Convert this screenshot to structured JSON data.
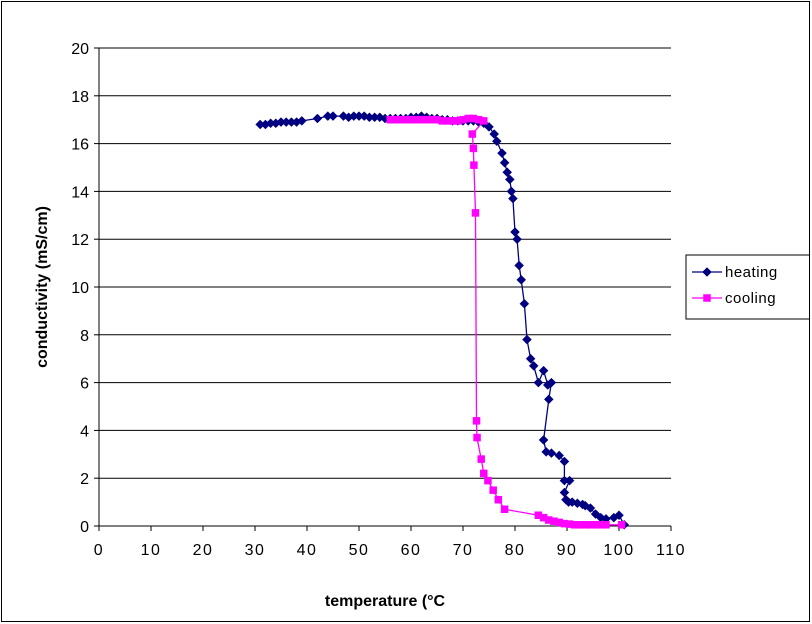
{
  "chart_data": {
    "type": "line",
    "title": "",
    "xlabel": "temperature (°C",
    "ylabel": "conductivity (mS/cm)",
    "xlim": [
      0,
      110
    ],
    "ylim": [
      0,
      20
    ],
    "x_ticks": [
      0,
      10,
      20,
      30,
      40,
      50,
      60,
      70,
      80,
      90,
      100,
      110
    ],
    "y_ticks": [
      0,
      2,
      4,
      6,
      8,
      10,
      12,
      14,
      16,
      18,
      20
    ],
    "grid": "horizontal",
    "legend_position": "right",
    "series": [
      {
        "name": "heating",
        "color": "#000080",
        "marker": "diamond",
        "points": [
          [
            31,
            16.8
          ],
          [
            32,
            16.8
          ],
          [
            33,
            16.85
          ],
          [
            34,
            16.85
          ],
          [
            35,
            16.9
          ],
          [
            36,
            16.9
          ],
          [
            37,
            16.9
          ],
          [
            38,
            16.9
          ],
          [
            39,
            16.95
          ],
          [
            42,
            17.05
          ],
          [
            44,
            17.15
          ],
          [
            45,
            17.15
          ],
          [
            47,
            17.15
          ],
          [
            48,
            17.1
          ],
          [
            49,
            17.15
          ],
          [
            50,
            17.15
          ],
          [
            51,
            17.15
          ],
          [
            52,
            17.1
          ],
          [
            53,
            17.1
          ],
          [
            54,
            17.1
          ],
          [
            55,
            17.05
          ],
          [
            56,
            17.05
          ],
          [
            57,
            17.05
          ],
          [
            58,
            17.05
          ],
          [
            59,
            17.05
          ],
          [
            60,
            17.1
          ],
          [
            61,
            17.1
          ],
          [
            62,
            17.15
          ],
          [
            63,
            17.1
          ],
          [
            64,
            17.05
          ],
          [
            65,
            17.05
          ],
          [
            66,
            17.0
          ],
          [
            67,
            17.0
          ],
          [
            68,
            16.95
          ],
          [
            69,
            16.95
          ],
          [
            70,
            16.95
          ],
          [
            71,
            16.95
          ],
          [
            72,
            16.95
          ],
          [
            73,
            16.9
          ],
          [
            74,
            16.85
          ],
          [
            75,
            16.7
          ],
          [
            76,
            16.4
          ],
          [
            76.5,
            16.1
          ],
          [
            77.5,
            15.6
          ],
          [
            78,
            15.2
          ],
          [
            78.5,
            14.8
          ],
          [
            79,
            14.5
          ],
          [
            79.3,
            14.0
          ],
          [
            79.6,
            13.7
          ],
          [
            80,
            12.3
          ],
          [
            80.4,
            12.0
          ],
          [
            80.8,
            10.9
          ],
          [
            81.2,
            10.3
          ],
          [
            81.8,
            9.3
          ],
          [
            82.3,
            7.8
          ],
          [
            83,
            7.0
          ],
          [
            83.6,
            6.7
          ],
          [
            84.5,
            6.0
          ],
          [
            85.5,
            6.5
          ],
          [
            86.3,
            5.9
          ],
          [
            87,
            6.0
          ],
          [
            86.5,
            5.3
          ],
          [
            85.5,
            3.6
          ],
          [
            86,
            3.1
          ],
          [
            87,
            3.05
          ],
          [
            88.5,
            2.95
          ],
          [
            89.5,
            2.7
          ],
          [
            89.5,
            1.9
          ],
          [
            90.5,
            1.9
          ],
          [
            89.5,
            1.4
          ],
          [
            89.8,
            1.1
          ],
          [
            90.3,
            1.0
          ],
          [
            91,
            1.0
          ],
          [
            92,
            0.95
          ],
          [
            93,
            0.9
          ],
          [
            93.5,
            0.85
          ],
          [
            94.5,
            0.75
          ],
          [
            95.5,
            0.5
          ],
          [
            96.5,
            0.35
          ],
          [
            97.5,
            0.3
          ],
          [
            99,
            0.35
          ],
          [
            100,
            0.45
          ],
          [
            101,
            0.05
          ]
        ]
      },
      {
        "name": "cooling",
        "color": "#FF00FF",
        "marker": "square",
        "points": [
          [
            56,
            17.0
          ],
          [
            57,
            17.0
          ],
          [
            58,
            17.0
          ],
          [
            59,
            17.0
          ],
          [
            60,
            17.0
          ],
          [
            61,
            17.0
          ],
          [
            62,
            17.0
          ],
          [
            63,
            17.0
          ],
          [
            64,
            17.0
          ],
          [
            65,
            17.0
          ],
          [
            66,
            16.95
          ],
          [
            67,
            16.95
          ],
          [
            68,
            16.95
          ],
          [
            69,
            16.95
          ],
          [
            70,
            17.0
          ],
          [
            71,
            17.05
          ],
          [
            72,
            17.05
          ],
          [
            73,
            17.0
          ],
          [
            74,
            16.95
          ],
          [
            71.8,
            16.4
          ],
          [
            72,
            15.8
          ],
          [
            72.1,
            15.1
          ],
          [
            72.4,
            13.1
          ],
          [
            72.6,
            4.4
          ],
          [
            72.7,
            3.7
          ],
          [
            73.5,
            2.8
          ],
          [
            74,
            2.2
          ],
          [
            74.8,
            1.9
          ],
          [
            75.8,
            1.5
          ],
          [
            76.8,
            1.1
          ],
          [
            78,
            0.7
          ],
          [
            84.5,
            0.45
          ],
          [
            85.5,
            0.35
          ],
          [
            86.5,
            0.25
          ],
          [
            87.5,
            0.2
          ],
          [
            88.5,
            0.15
          ],
          [
            89.5,
            0.1
          ],
          [
            90.5,
            0.08
          ],
          [
            91.5,
            0.05
          ],
          [
            92.5,
            0.05
          ],
          [
            93.5,
            0.05
          ],
          [
            94.5,
            0.05
          ],
          [
            95.5,
            0.05
          ],
          [
            96.5,
            0.05
          ],
          [
            97.5,
            0.05
          ],
          [
            100.5,
            0.05
          ]
        ]
      }
    ]
  }
}
